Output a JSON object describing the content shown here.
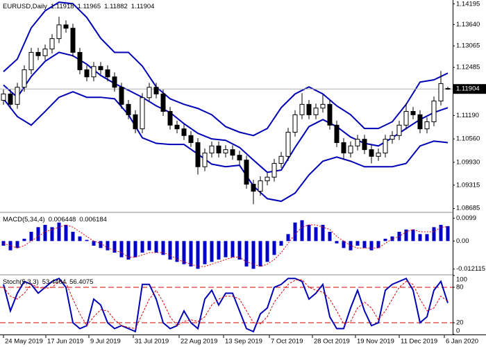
{
  "chart_data": [
    {
      "type": "candlestick",
      "title": "EURUSD,Daily",
      "open": [
        1.116,
        1.1177,
        1.1149,
        1.1195,
        1.1242,
        1.1289,
        1.128,
        1.1298,
        1.1326,
        1.1363,
        1.1354,
        1.1289,
        1.1242,
        1.1223,
        1.1251,
        1.1242,
        1.1223,
        1.1195,
        1.1149,
        1.1121,
        1.1083,
        1.1167,
        1.1195,
        1.1177,
        1.113,
        1.1093,
        1.1083,
        1.1065,
        1.1046,
        1.0981,
        1.1018,
        1.1037,
        1.1018,
        1.1027,
        1.1012,
        1.0999,
        1.0934,
        1.0915,
        1.0943,
        1.0953,
        1.099,
        1.1009,
        1.1074,
        1.1121,
        1.1149,
        1.1121,
        1.1139,
        1.1149,
        1.1093,
        1.1046,
        1.1018,
        1.1037,
        1.1055,
        1.1027,
        1.1009,
        1.1018,
        1.1055,
        1.1065,
        1.1093,
        1.113,
        1.1121,
        1.1083,
        1.1102,
        1.1158,
        1.11918
      ],
      "high": [
        1.1189,
        1.1189,
        1.1207,
        1.1254,
        1.1301,
        1.1301,
        1.131,
        1.1338,
        1.1385,
        1.1375,
        1.1366,
        1.1301,
        1.1254,
        1.1263,
        1.1263,
        1.1254,
        1.1235,
        1.1207,
        1.1161,
        1.1133,
        1.1179,
        1.1207,
        1.1207,
        1.1189,
        1.1142,
        1.1105,
        1.1095,
        1.1077,
        1.1058,
        1.103,
        1.1049,
        1.1049,
        1.1039,
        1.1039,
        1.1024,
        1.1011,
        1.0946,
        1.0955,
        1.0965,
        1.1002,
        1.1021,
        1.1086,
        1.1133,
        1.1179,
        1.1161,
        1.1151,
        1.1175,
        1.1161,
        1.1105,
        1.1058,
        1.1049,
        1.1067,
        1.1067,
        1.1039,
        1.103,
        1.1067,
        1.1077,
        1.1105,
        1.1152,
        1.1142,
        1.1133,
        1.1114,
        1.117,
        1.1239,
        1.11965
      ],
      "low": [
        1.1148,
        1.1137,
        1.1137,
        1.1183,
        1.123,
        1.1268,
        1.1268,
        1.1286,
        1.1314,
        1.1342,
        1.1277,
        1.123,
        1.1211,
        1.1211,
        1.123,
        1.1211,
        1.1183,
        1.1137,
        1.1109,
        1.1071,
        1.1071,
        1.1155,
        1.1165,
        1.1118,
        1.1081,
        1.1071,
        1.1053,
        1.1034,
        1.096,
        1.0969,
        1.1006,
        1.1006,
        1.1006,
        1.1,
        1.0987,
        1.0922,
        1.088,
        1.0903,
        1.0931,
        1.0941,
        1.0978,
        1.0997,
        1.1062,
        1.1109,
        1.1109,
        1.1109,
        1.1127,
        1.1081,
        1.1034,
        1.1,
        1.1006,
        1.1025,
        1.1015,
        1.099,
        1.0997,
        1.1006,
        1.1043,
        1.1053,
        1.1081,
        1.1109,
        1.1071,
        1.1071,
        1.109,
        1.1146,
        1.11882
      ],
      "close": [
        1.1177,
        1.1149,
        1.1195,
        1.1242,
        1.1289,
        1.128,
        1.1298,
        1.1326,
        1.1363,
        1.1354,
        1.1289,
        1.1242,
        1.1223,
        1.1251,
        1.1242,
        1.1223,
        1.1195,
        1.1149,
        1.1121,
        1.1083,
        1.1167,
        1.1195,
        1.1177,
        1.113,
        1.1093,
        1.1083,
        1.1065,
        1.1046,
        1.0981,
        1.1018,
        1.1037,
        1.1018,
        1.1027,
        1.1012,
        1.0999,
        1.0934,
        1.0915,
        1.0943,
        1.0953,
        1.099,
        1.1009,
        1.1074,
        1.1121,
        1.1149,
        1.1121,
        1.1139,
        1.1149,
        1.1093,
        1.1046,
        1.1018,
        1.1037,
        1.1055,
        1.1027,
        1.1009,
        1.1018,
        1.1055,
        1.1065,
        1.1093,
        1.113,
        1.1121,
        1.1083,
        1.1102,
        1.1158,
        1.1205,
        1.11904
      ],
      "color": "#000000",
      "bands": {
        "color": "#0000b4",
        "x": [
          0,
          2,
          4,
          6,
          8,
          10,
          12,
          14,
          16,
          18,
          20,
          22,
          24,
          26,
          28,
          30,
          32,
          34,
          36,
          38,
          40,
          42,
          44,
          46,
          48,
          50,
          52,
          54,
          56,
          58,
          60,
          62,
          64
        ],
        "upper": [
          1.1237,
          1.1271,
          1.1355,
          1.1401,
          1.1424,
          1.142,
          1.1383,
          1.1327,
          1.1289,
          1.1289,
          1.1252,
          1.1196,
          1.1164,
          1.1149,
          1.1138,
          1.1121,
          1.1089,
          1.1074,
          1.1065,
          1.1084,
          1.114,
          1.1177,
          1.1196,
          1.1177,
          1.1145,
          1.1121,
          1.1084,
          1.1084,
          1.1102,
          1.1149,
          1.1209,
          1.1215,
          1.1233
        ],
        "middle": [
          1.1201,
          1.1168,
          1.1224,
          1.1265,
          1.1289,
          1.128,
          1.1257,
          1.1227,
          1.1205,
          1.1187,
          1.1168,
          1.1145,
          1.1127,
          1.1097,
          1.1071,
          1.1056,
          1.1052,
          1.1033,
          1.0999,
          1.0966,
          1.0972,
          1.1033,
          1.1089,
          1.1108,
          1.1089,
          1.1061,
          1.1044,
          1.1037,
          1.1059,
          1.1084,
          1.1108,
          1.1127,
          1.114
        ],
        "lower": [
          1.1164,
          1.1116,
          1.1093,
          1.113,
          1.1168,
          1.1183,
          1.1168,
          1.1168,
          1.1164,
          1.1121,
          1.1059,
          1.1044,
          1.1041,
          1.1041,
          1.1015,
          1.0988,
          1.0981,
          1.0985,
          1.0929,
          1.0895,
          1.0888,
          1.091,
          1.0959,
          1.0996,
          1.1007,
          1.0996,
          1.0981,
          1.0981,
          1.0981,
          1.099,
          1.1037,
          1.105,
          1.1046
        ]
      },
      "ylim": [
        1.086,
        1.143
      ],
      "yticks": [
        1.14195,
        {
          "value": 1.1364,
          "label": "1.13640"
        },
        1.13065,
        1.12485,
        {
          "value": 1.1119,
          "label": "1.11190"
        },
        {
          "value": 1.1056,
          "label": "1.10560"
        },
        {
          "value": 1.0993,
          "label": "1.09930"
        },
        1.09315,
        1.08685
      ],
      "xticks": [
        {
          "value": 0,
          "label": "24 May 2019"
        },
        {
          "value": 6.1,
          "label": "17 Jun 2019"
        },
        {
          "value": 12.3,
          "label": "9 Jul 2019"
        },
        {
          "value": 18.7,
          "label": "31 Jul 2019"
        },
        {
          "value": 25.3,
          "label": "22 Aug 2019"
        },
        {
          "value": 31.7,
          "label": "13 Sep 2019"
        },
        {
          "value": 38.3,
          "label": "7 Oct 2019"
        },
        {
          "value": 44.5,
          "label": "28 Oct 2019"
        },
        {
          "value": 50.7,
          "label": "19 Nov 2019"
        },
        {
          "value": 57,
          "label": "11 Dec 2019"
        },
        {
          "value": 63.5,
          "label": "6 Jan 2020"
        }
      ]
    },
    {
      "type": "macd",
      "title": "MACD(5,34,4)",
      "histogram": {
        "color": "#0000c8",
        "values": [
          -0.002,
          -0.004,
          -0.003,
          0.001,
          0.004,
          0.006,
          0.007,
          0.006,
          0.008,
          0.007,
          0.004,
          0.002,
          0.0005,
          -0.002,
          -0.003,
          -0.004,
          -0.005,
          -0.007,
          -0.008,
          -0.007,
          -0.005,
          -0.004,
          -0.005,
          -0.006,
          -0.008,
          -0.009,
          -0.01,
          -0.011,
          -0.012,
          -0.01,
          -0.009,
          -0.008,
          -0.007,
          -0.007,
          -0.008,
          -0.011,
          -0.012,
          -0.011,
          -0.009,
          -0.006,
          -0.002,
          0.003,
          0.008,
          0.009,
          0.007,
          0.006,
          0.007,
          0.004,
          -0.001,
          -0.003,
          -0.004,
          -0.002,
          -0.003,
          -0.004,
          -0.003,
          0.001,
          0.002,
          0.004,
          0.005,
          0.005,
          0.003,
          0.003,
          0.006,
          0.007,
          0.006448
        ]
      },
      "signal": {
        "color": "#e00000",
        "values": [
          -0.001,
          -0.002,
          -0.003,
          -0.002,
          0.0,
          0.002,
          0.004,
          0.005,
          0.006,
          0.007,
          0.006,
          0.004,
          0.002,
          0.0,
          -0.001,
          -0.003,
          -0.004,
          -0.005,
          -0.007,
          -0.007,
          -0.006,
          -0.005,
          -0.005,
          -0.005,
          -0.006,
          -0.008,
          -0.009,
          -0.01,
          -0.011,
          -0.011,
          -0.01,
          -0.009,
          -0.008,
          -0.007,
          -0.007,
          -0.009,
          -0.01,
          -0.011,
          -0.01,
          -0.008,
          -0.005,
          -0.001,
          0.003,
          0.006,
          0.007,
          0.007,
          0.006,
          0.005,
          0.002,
          0.0,
          -0.002,
          -0.003,
          -0.003,
          -0.003,
          -0.003,
          -0.001,
          0.001,
          0.002,
          0.004,
          0.005,
          0.004,
          0.004,
          0.004,
          0.006,
          0.006184
        ]
      },
      "ylim": [
        -0.0143,
        0.0121
      ],
      "yticks": [
        0.0099,
        {
          "value": 0,
          "label": "0.00"
        },
        -0.012115
      ]
    },
    {
      "type": "stochastic",
      "title": "Stoch(5,3,3)",
      "main": {
        "color": "#0000b4",
        "values": [
          85,
          40,
          70,
          90,
          85,
          70,
          80,
          90,
          95,
          80,
          20,
          10,
          15,
          60,
          50,
          20,
          10,
          15,
          10,
          5,
          85,
          85,
          60,
          20,
          10,
          15,
          40,
          20,
          10,
          60,
          75,
          50,
          70,
          70,
          40,
          10,
          5,
          35,
          45,
          80,
          85,
          95,
          95,
          90,
          60,
          70,
          85,
          30,
          10,
          10,
          45,
          75,
          40,
          15,
          20,
          75,
          85,
          90,
          95,
          75,
          20,
          30,
          75,
          90,
          53.4404
        ]
      },
      "signal": {
        "color": "#e00000",
        "values": [
          80,
          65,
          60,
          70,
          85,
          80,
          78,
          80,
          90,
          88,
          60,
          35,
          15,
          30,
          42,
          40,
          25,
          15,
          12,
          10,
          35,
          60,
          75,
          55,
          30,
          15,
          22,
          25,
          22,
          30,
          50,
          60,
          65,
          65,
          60,
          40,
          20,
          18,
          30,
          55,
          70,
          85,
          92,
          93,
          80,
          75,
          72,
          60,
          40,
          18,
          22,
          45,
          55,
          45,
          25,
          40,
          60,
          80,
          90,
          85,
          60,
          40,
          45,
          65,
          56.4075
        ]
      },
      "levels": [
        80,
        20
      ],
      "level_color": "#d00000",
      "ylim": [
        0,
        100
      ],
      "yticks": [
        100,
        80,
        20,
        0
      ]
    }
  ]
}
